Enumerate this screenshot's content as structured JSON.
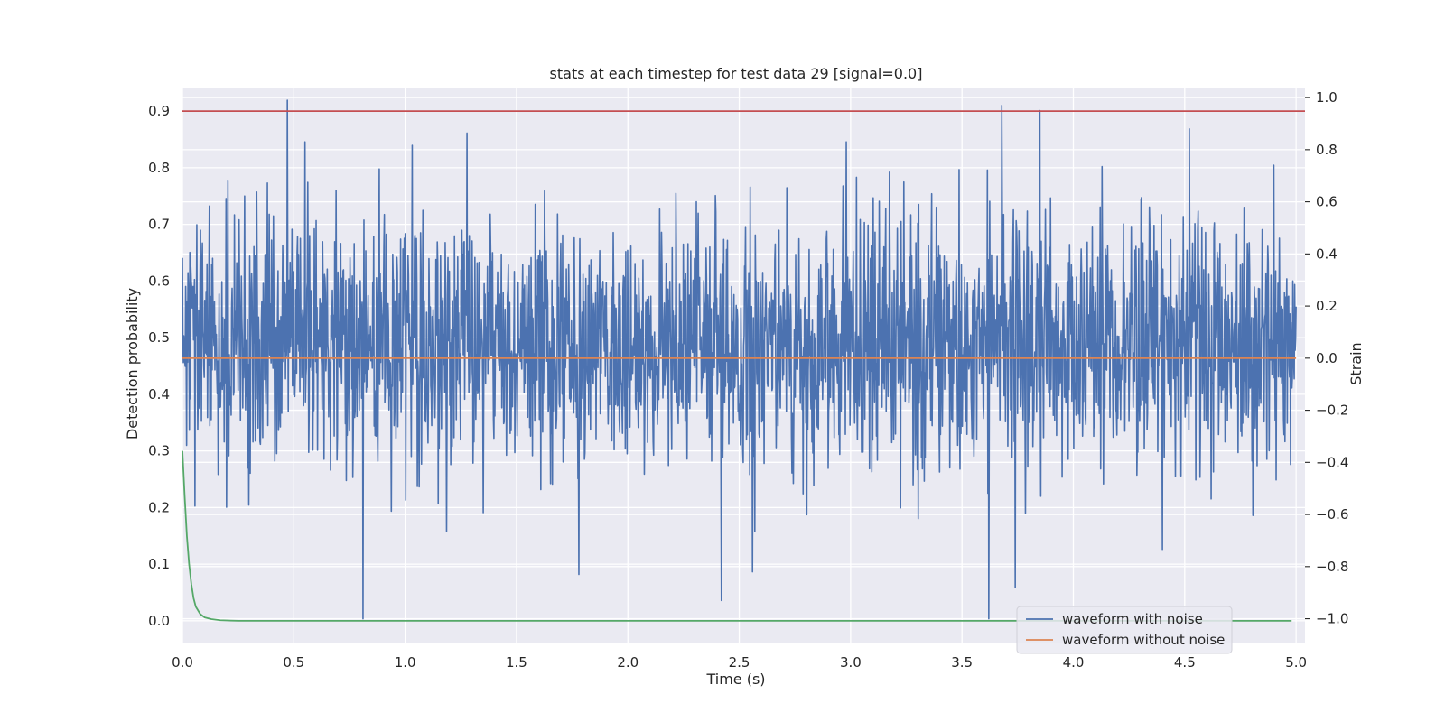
{
  "chart_data": {
    "type": "line",
    "title": "stats at each timestep for test data 29 [signal=0.0]",
    "xlabel": "Time (s)",
    "ylabel_left": "Detection probability",
    "ylabel_right": "Strain",
    "xlim": [
      0.0,
      5.04
    ],
    "ylim_left": [
      -0.04,
      0.94
    ],
    "ylim_right": [
      -1.095,
      1.035
    ],
    "x_ticks": [
      "0.0",
      "0.5",
      "1.0",
      "1.5",
      "2.0",
      "2.5",
      "3.0",
      "3.5",
      "4.0",
      "4.5",
      "5.0"
    ],
    "y_ticks_left": [
      "0.0",
      "0.1",
      "0.2",
      "0.3",
      "0.4",
      "0.5",
      "0.6",
      "0.7",
      "0.8",
      "0.9"
    ],
    "y_ticks_right": [
      "−1.0",
      "−0.8",
      "−0.6",
      "−0.4",
      "−0.2",
      "0.0",
      "0.2",
      "0.4",
      "0.6",
      "0.8",
      "1.0"
    ],
    "grid": true,
    "legend_position": "lower-right",
    "threshold": {
      "value": 0.9,
      "color": "#c44e52"
    },
    "series": [
      {
        "name": "waveform with noise",
        "axis": "right",
        "color": "#4c72b0",
        "description": "dense noise spanning 0.0 to 5.0 s",
        "x_range": [
          0.0,
          5.0
        ],
        "typical_range": [
          -0.45,
          0.55
        ],
        "peaks": [
          [
            0.47,
            0.99
          ],
          [
            0.55,
            0.83
          ],
          [
            3.85,
            0.95
          ],
          [
            2.98,
            0.83
          ],
          [
            4.52,
            0.88
          ]
        ],
        "troughs": [
          [
            0.81,
            -1.0
          ],
          [
            3.62,
            -1.0
          ],
          [
            3.74,
            -0.88
          ],
          [
            2.42,
            -0.93
          ],
          [
            1.78,
            -0.83
          ],
          [
            2.56,
            -0.82
          ]
        ]
      },
      {
        "name": "waveform without noise",
        "axis": "right",
        "color": "#dd8452",
        "x": [
          0.0,
          5.0
        ],
        "values": [
          0.0,
          0.0
        ]
      },
      {
        "name": "",
        "axis": "left",
        "color": "#55a868",
        "x": [
          0.0,
          0.01,
          0.02,
          0.03,
          0.04,
          0.05,
          0.06,
          0.08,
          0.1,
          0.13,
          0.17,
          0.25,
          0.5,
          1.0,
          2.0,
          3.0,
          4.0,
          4.98
        ],
        "values": [
          0.3,
          0.22,
          0.15,
          0.1,
          0.065,
          0.04,
          0.025,
          0.012,
          0.006,
          0.003,
          0.001,
          0.0,
          0.0,
          0.0,
          0.0,
          0.0,
          0.0,
          0.0
        ]
      }
    ]
  }
}
